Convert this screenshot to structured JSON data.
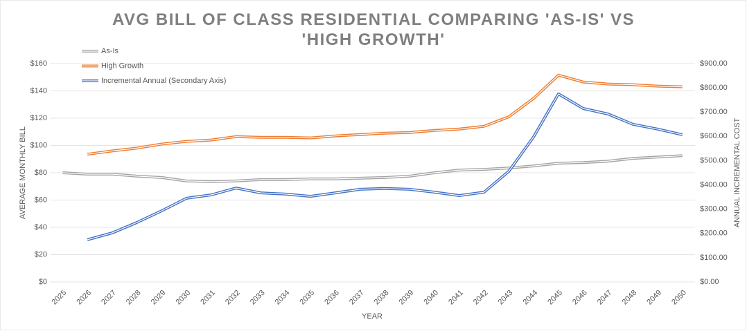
{
  "chart_data": {
    "type": "line",
    "title": "AVG BILL OF CLASS RESIDENTIAL COMPARING 'AS-IS' VS 'HIGH GROWTH'",
    "x_label": "YEAR",
    "y_label": "AVERAGE MONTHLY BILL",
    "y2_label": "ANNUAL INCREMENTAL COST",
    "categories": [
      "2025",
      "2026",
      "2027",
      "2028",
      "2029",
      "2030",
      "2031",
      "2032",
      "2033",
      "2034",
      "2035",
      "2036",
      "2037",
      "2038",
      "2039",
      "2040",
      "2041",
      "2042",
      "2043",
      "2044",
      "2045",
      "2046",
      "2047",
      "2048",
      "2049",
      "2050"
    ],
    "series": [
      {
        "name": "As-Is",
        "color": "#a5a5a5",
        "values": [
          80,
          79,
          79,
          77.5,
          76.5,
          74,
          73.5,
          74,
          75,
          75,
          75.5,
          75.5,
          76,
          76.5,
          77.5,
          80,
          82,
          82.5,
          83.5,
          85,
          87,
          87.5,
          88.5,
          90.5,
          91.5,
          92.5
        ]
      },
      {
        "name": "High Growth",
        "color": "#ed7d31",
        "values": [
          null,
          93.5,
          96,
          98,
          101,
          103,
          104,
          106.5,
          106,
          106,
          105.5,
          107,
          108,
          109,
          109.5,
          111,
          112,
          114,
          121,
          134.5,
          151.5,
          146.5,
          145,
          144.5,
          143.5,
          143
        ]
      },
      {
        "name": "Incremental Annual (Secondary Axis)",
        "color": "#4472c4",
        "axis": "y2",
        "values": [
          null,
          174,
          202,
          245,
          293,
          345,
          359,
          387,
          367,
          362,
          353,
          367,
          382,
          385,
          382,
          370,
          356,
          370,
          456,
          598,
          775,
          715,
          692,
          650,
          630,
          607
        ]
      }
    ],
    "ylim": [
      0,
      160
    ],
    "yticks": [
      {
        "value": 0,
        "label": "$0"
      },
      {
        "value": 20,
        "label": "$20"
      },
      {
        "value": 40,
        "label": "$40"
      },
      {
        "value": 60,
        "label": "$60"
      },
      {
        "value": 80,
        "label": "$80"
      },
      {
        "value": 100,
        "label": "$100"
      },
      {
        "value": 120,
        "label": "$120"
      },
      {
        "value": 140,
        "label": "$140"
      },
      {
        "value": 160,
        "label": "$160"
      }
    ],
    "y2lim": [
      0,
      900
    ],
    "y2ticks": [
      {
        "value": 0,
        "label": "$0.00"
      },
      {
        "value": 100,
        "label": "$100.00"
      },
      {
        "value": 200,
        "label": "$200.00"
      },
      {
        "value": 300,
        "label": "$300.00"
      },
      {
        "value": 400,
        "label": "$400.00"
      },
      {
        "value": 500,
        "label": "$500.00"
      },
      {
        "value": 600,
        "label": "$600.00"
      },
      {
        "value": 700,
        "label": "$700.00"
      },
      {
        "value": 800,
        "label": "$800.00"
      },
      {
        "value": 900,
        "label": "$900.00"
      }
    ],
    "grid": true,
    "legend": "top-left"
  }
}
